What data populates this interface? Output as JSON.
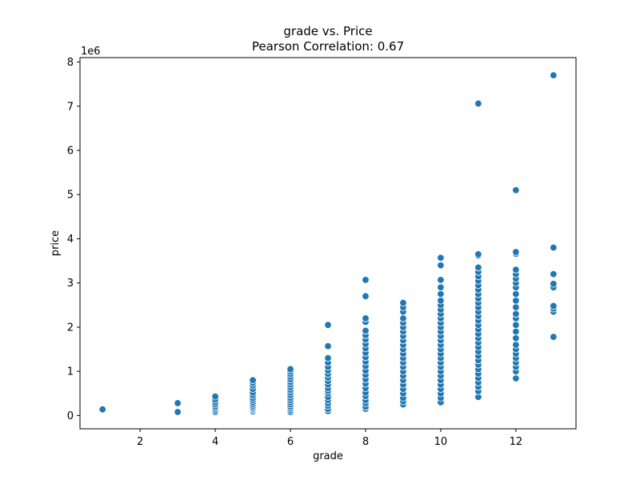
{
  "chart_data": {
    "type": "scatter",
    "title": "grade vs. Price",
    "subtitle": "Pearson Correlation: 0.67",
    "xlabel": "grade",
    "ylabel": "price",
    "y_offset_label": "1e6",
    "xlim": [
      0.4,
      13.6
    ],
    "ylim": [
      -0.3,
      8.1
    ],
    "x_ticks": [
      2,
      4,
      6,
      8,
      10,
      12
    ],
    "y_ticks": [
      0,
      1,
      2,
      3,
      4,
      5,
      6,
      7,
      8
    ],
    "grid": false,
    "point_color": "#1f77b4",
    "series": [
      {
        "points": [
          [
            1,
            0.14
          ],
          [
            3,
            0.08
          ],
          [
            3,
            0.28
          ],
          [
            4,
            0.08
          ],
          [
            4,
            0.12
          ],
          [
            4,
            0.16
          ],
          [
            4,
            0.2
          ],
          [
            4,
            0.25
          ],
          [
            4,
            0.3
          ],
          [
            4,
            0.36
          ],
          [
            4,
            0.43
          ],
          [
            5,
            0.09
          ],
          [
            5,
            0.12
          ],
          [
            5,
            0.15
          ],
          [
            5,
            0.18
          ],
          [
            5,
            0.22
          ],
          [
            5,
            0.26
          ],
          [
            5,
            0.3
          ],
          [
            5,
            0.35
          ],
          [
            5,
            0.4
          ],
          [
            5,
            0.46
          ],
          [
            5,
            0.52
          ],
          [
            5,
            0.6
          ],
          [
            5,
            0.68
          ],
          [
            5,
            0.74
          ],
          [
            5,
            0.8
          ],
          [
            6,
            0.08
          ],
          [
            6,
            0.12
          ],
          [
            6,
            0.16
          ],
          [
            6,
            0.2
          ],
          [
            6,
            0.25
          ],
          [
            6,
            0.3
          ],
          [
            6,
            0.35
          ],
          [
            6,
            0.4
          ],
          [
            6,
            0.46
          ],
          [
            6,
            0.52
          ],
          [
            6,
            0.58
          ],
          [
            6,
            0.64
          ],
          [
            6,
            0.7
          ],
          [
            6,
            0.76
          ],
          [
            6,
            0.82
          ],
          [
            6,
            0.88
          ],
          [
            6,
            0.94
          ],
          [
            6,
            1.0
          ],
          [
            6,
            1.05
          ],
          [
            7,
            0.1
          ],
          [
            7,
            0.15
          ],
          [
            7,
            0.22
          ],
          [
            7,
            0.28
          ],
          [
            7,
            0.35
          ],
          [
            7,
            0.42
          ],
          [
            7,
            0.5
          ],
          [
            7,
            0.56
          ],
          [
            7,
            0.62
          ],
          [
            7,
            0.7
          ],
          [
            7,
            0.78
          ],
          [
            7,
            0.86
          ],
          [
            7,
            0.94
          ],
          [
            7,
            1.02
          ],
          [
            7,
            1.1
          ],
          [
            7,
            1.2
          ],
          [
            7,
            1.3
          ],
          [
            7,
            1.57
          ],
          [
            7,
            2.05
          ],
          [
            8,
            0.15
          ],
          [
            8,
            0.2
          ],
          [
            8,
            0.28
          ],
          [
            8,
            0.35
          ],
          [
            8,
            0.44
          ],
          [
            8,
            0.52
          ],
          [
            8,
            0.62
          ],
          [
            8,
            0.72
          ],
          [
            8,
            0.82
          ],
          [
            8,
            0.92
          ],
          [
            8,
            1.02
          ],
          [
            8,
            1.12
          ],
          [
            8,
            1.22
          ],
          [
            8,
            1.32
          ],
          [
            8,
            1.42
          ],
          [
            8,
            1.52
          ],
          [
            8,
            1.62
          ],
          [
            8,
            1.72
          ],
          [
            8,
            1.82
          ],
          [
            8,
            1.92
          ],
          [
            8,
            2.12
          ],
          [
            8,
            2.2
          ],
          [
            8,
            2.7
          ],
          [
            8,
            3.07
          ],
          [
            9,
            0.25
          ],
          [
            9,
            0.32
          ],
          [
            9,
            0.4
          ],
          [
            9,
            0.5
          ],
          [
            9,
            0.6
          ],
          [
            9,
            0.7
          ],
          [
            9,
            0.8
          ],
          [
            9,
            0.9
          ],
          [
            9,
            1.0
          ],
          [
            9,
            1.1
          ],
          [
            9,
            1.2
          ],
          [
            9,
            1.3
          ],
          [
            9,
            1.4
          ],
          [
            9,
            1.5
          ],
          [
            9,
            1.6
          ],
          [
            9,
            1.7
          ],
          [
            9,
            1.8
          ],
          [
            9,
            1.9
          ],
          [
            9,
            2.0
          ],
          [
            9,
            2.1
          ],
          [
            9,
            2.2
          ],
          [
            9,
            2.35
          ],
          [
            9,
            2.45
          ],
          [
            9,
            2.55
          ],
          [
            10,
            0.3
          ],
          [
            10,
            0.4
          ],
          [
            10,
            0.5
          ],
          [
            10,
            0.6
          ],
          [
            10,
            0.7
          ],
          [
            10,
            0.8
          ],
          [
            10,
            0.9
          ],
          [
            10,
            1.0
          ],
          [
            10,
            1.1
          ],
          [
            10,
            1.2
          ],
          [
            10,
            1.3
          ],
          [
            10,
            1.4
          ],
          [
            10,
            1.5
          ],
          [
            10,
            1.6
          ],
          [
            10,
            1.7
          ],
          [
            10,
            1.8
          ],
          [
            10,
            1.9
          ],
          [
            10,
            2.0
          ],
          [
            10,
            2.1
          ],
          [
            10,
            2.2
          ],
          [
            10,
            2.3
          ],
          [
            10,
            2.4
          ],
          [
            10,
            2.5
          ],
          [
            10,
            2.6
          ],
          [
            10,
            2.75
          ],
          [
            10,
            2.9
          ],
          [
            10,
            3.07
          ],
          [
            10,
            3.4
          ],
          [
            10,
            3.57
          ],
          [
            11,
            0.42
          ],
          [
            11,
            0.55
          ],
          [
            11,
            0.65
          ],
          [
            11,
            0.75
          ],
          [
            11,
            0.85
          ],
          [
            11,
            0.95
          ],
          [
            11,
            1.05
          ],
          [
            11,
            1.15
          ],
          [
            11,
            1.25
          ],
          [
            11,
            1.35
          ],
          [
            11,
            1.45
          ],
          [
            11,
            1.55
          ],
          [
            11,
            1.65
          ],
          [
            11,
            1.75
          ],
          [
            11,
            1.85
          ],
          [
            11,
            1.95
          ],
          [
            11,
            2.05
          ],
          [
            11,
            2.15
          ],
          [
            11,
            2.25
          ],
          [
            11,
            2.35
          ],
          [
            11,
            2.45
          ],
          [
            11,
            2.55
          ],
          [
            11,
            2.65
          ],
          [
            11,
            2.75
          ],
          [
            11,
            2.85
          ],
          [
            11,
            2.95
          ],
          [
            11,
            3.05
          ],
          [
            11,
            3.15
          ],
          [
            11,
            3.25
          ],
          [
            11,
            3.35
          ],
          [
            11,
            3.62
          ],
          [
            11,
            3.65
          ],
          [
            11,
            7.06
          ],
          [
            12,
            0.84
          ],
          [
            12,
            1.0
          ],
          [
            12,
            1.1
          ],
          [
            12,
            1.2
          ],
          [
            12,
            1.3
          ],
          [
            12,
            1.4
          ],
          [
            12,
            1.5
          ],
          [
            12,
            1.6
          ],
          [
            12,
            1.75
          ],
          [
            12,
            1.9
          ],
          [
            12,
            2.05
          ],
          [
            12,
            2.2
          ],
          [
            12,
            2.3
          ],
          [
            12,
            2.45
          ],
          [
            12,
            2.6
          ],
          [
            12,
            2.75
          ],
          [
            12,
            2.9
          ],
          [
            12,
            3.0
          ],
          [
            12,
            3.1
          ],
          [
            12,
            3.2
          ],
          [
            12,
            3.3
          ],
          [
            12,
            3.66
          ],
          [
            12,
            3.7
          ],
          [
            12,
            5.1
          ],
          [
            13,
            1.78
          ],
          [
            13,
            2.35
          ],
          [
            13,
            2.42
          ],
          [
            13,
            2.48
          ],
          [
            13,
            2.9
          ],
          [
            13,
            2.98
          ],
          [
            13,
            3.2
          ],
          [
            13,
            3.8
          ],
          [
            13,
            7.7
          ]
        ]
      }
    ]
  }
}
